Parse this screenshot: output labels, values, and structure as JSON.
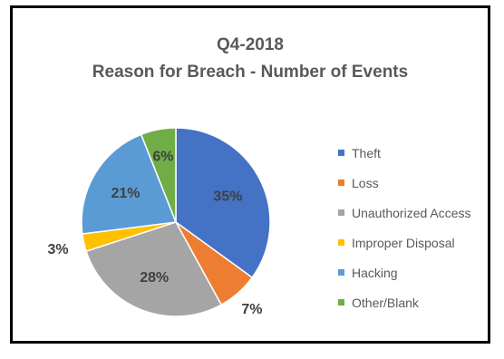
{
  "chart_data": {
    "type": "pie",
    "title": "Q4-2018",
    "subtitle": "Reason for Breach - Number of Events",
    "slices": [
      {
        "label": "Theft",
        "value": 35,
        "display": "35%",
        "color": "#4472C4"
      },
      {
        "label": "Loss",
        "value": 7,
        "display": "7%",
        "color": "#ED7D31"
      },
      {
        "label": "Unauthorized Access",
        "value": 28,
        "display": "28%",
        "color": "#A5A5A5"
      },
      {
        "label": "Improper Disposal",
        "value": 3,
        "display": "3%",
        "color": "#FFC000"
      },
      {
        "label": "Hacking",
        "value": 21,
        "display": "21%",
        "color": "#5B9BD5"
      },
      {
        "label": "Other/Blank",
        "value": 6,
        "display": "6%",
        "color": "#70AD47"
      }
    ],
    "legend_position": "right"
  }
}
